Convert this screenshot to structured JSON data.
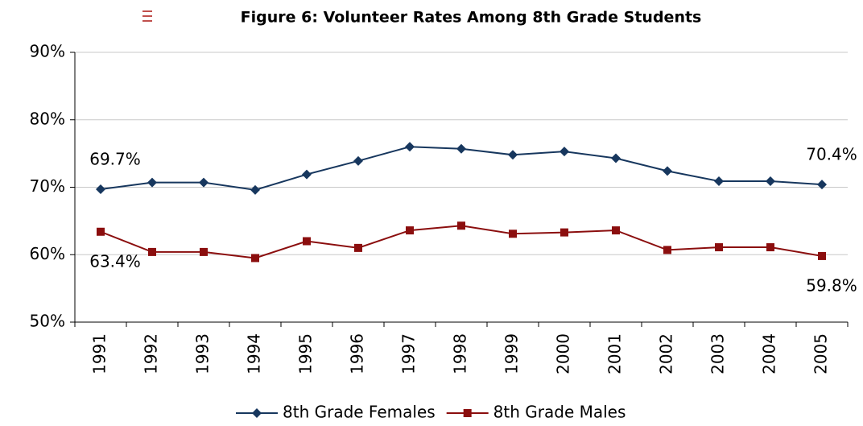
{
  "chart_data": {
    "type": "line",
    "title": "Figure 6: Volunteer Rates Among 8th Grade Students",
    "categories": [
      "1991",
      "1992",
      "1993",
      "1994",
      "1995",
      "1996",
      "1997",
      "1998",
      "1999",
      "2000",
      "2001",
      "2002",
      "2003",
      "2004",
      "2005"
    ],
    "series": [
      {
        "name": "8th Grade Females",
        "color": "#17375e",
        "marker": "diamond",
        "values": [
          69.7,
          70.7,
          70.7,
          69.6,
          71.9,
          73.9,
          76.0,
          75.7,
          74.8,
          75.3,
          74.3,
          72.4,
          70.9,
          70.9,
          70.4
        ],
        "value_labels": [
          "69.7%",
          null,
          null,
          null,
          null,
          null,
          null,
          null,
          null,
          null,
          null,
          null,
          null,
          null,
          "70.4%"
        ]
      },
      {
        "name": "8th Grade Males",
        "color": "#8b0e0e",
        "marker": "square",
        "values": [
          63.4,
          60.4,
          60.4,
          59.5,
          62.0,
          61.0,
          63.6,
          64.3,
          63.1,
          63.3,
          63.6,
          60.7,
          61.1,
          61.1,
          59.8
        ],
        "value_labels": [
          "63.4%",
          null,
          null,
          null,
          null,
          null,
          null,
          null,
          null,
          null,
          null,
          null,
          null,
          null,
          "59.8%"
        ]
      }
    ],
    "ylim": [
      50,
      90
    ],
    "yticks": [
      {
        "value": 50,
        "label": "50%"
      },
      {
        "value": 60,
        "label": "60%"
      },
      {
        "value": 70,
        "label": "70%"
      },
      {
        "value": 80,
        "label": "80%"
      },
      {
        "value": 90,
        "label": "90%"
      }
    ],
    "grid": true,
    "legend": "bottom"
  }
}
